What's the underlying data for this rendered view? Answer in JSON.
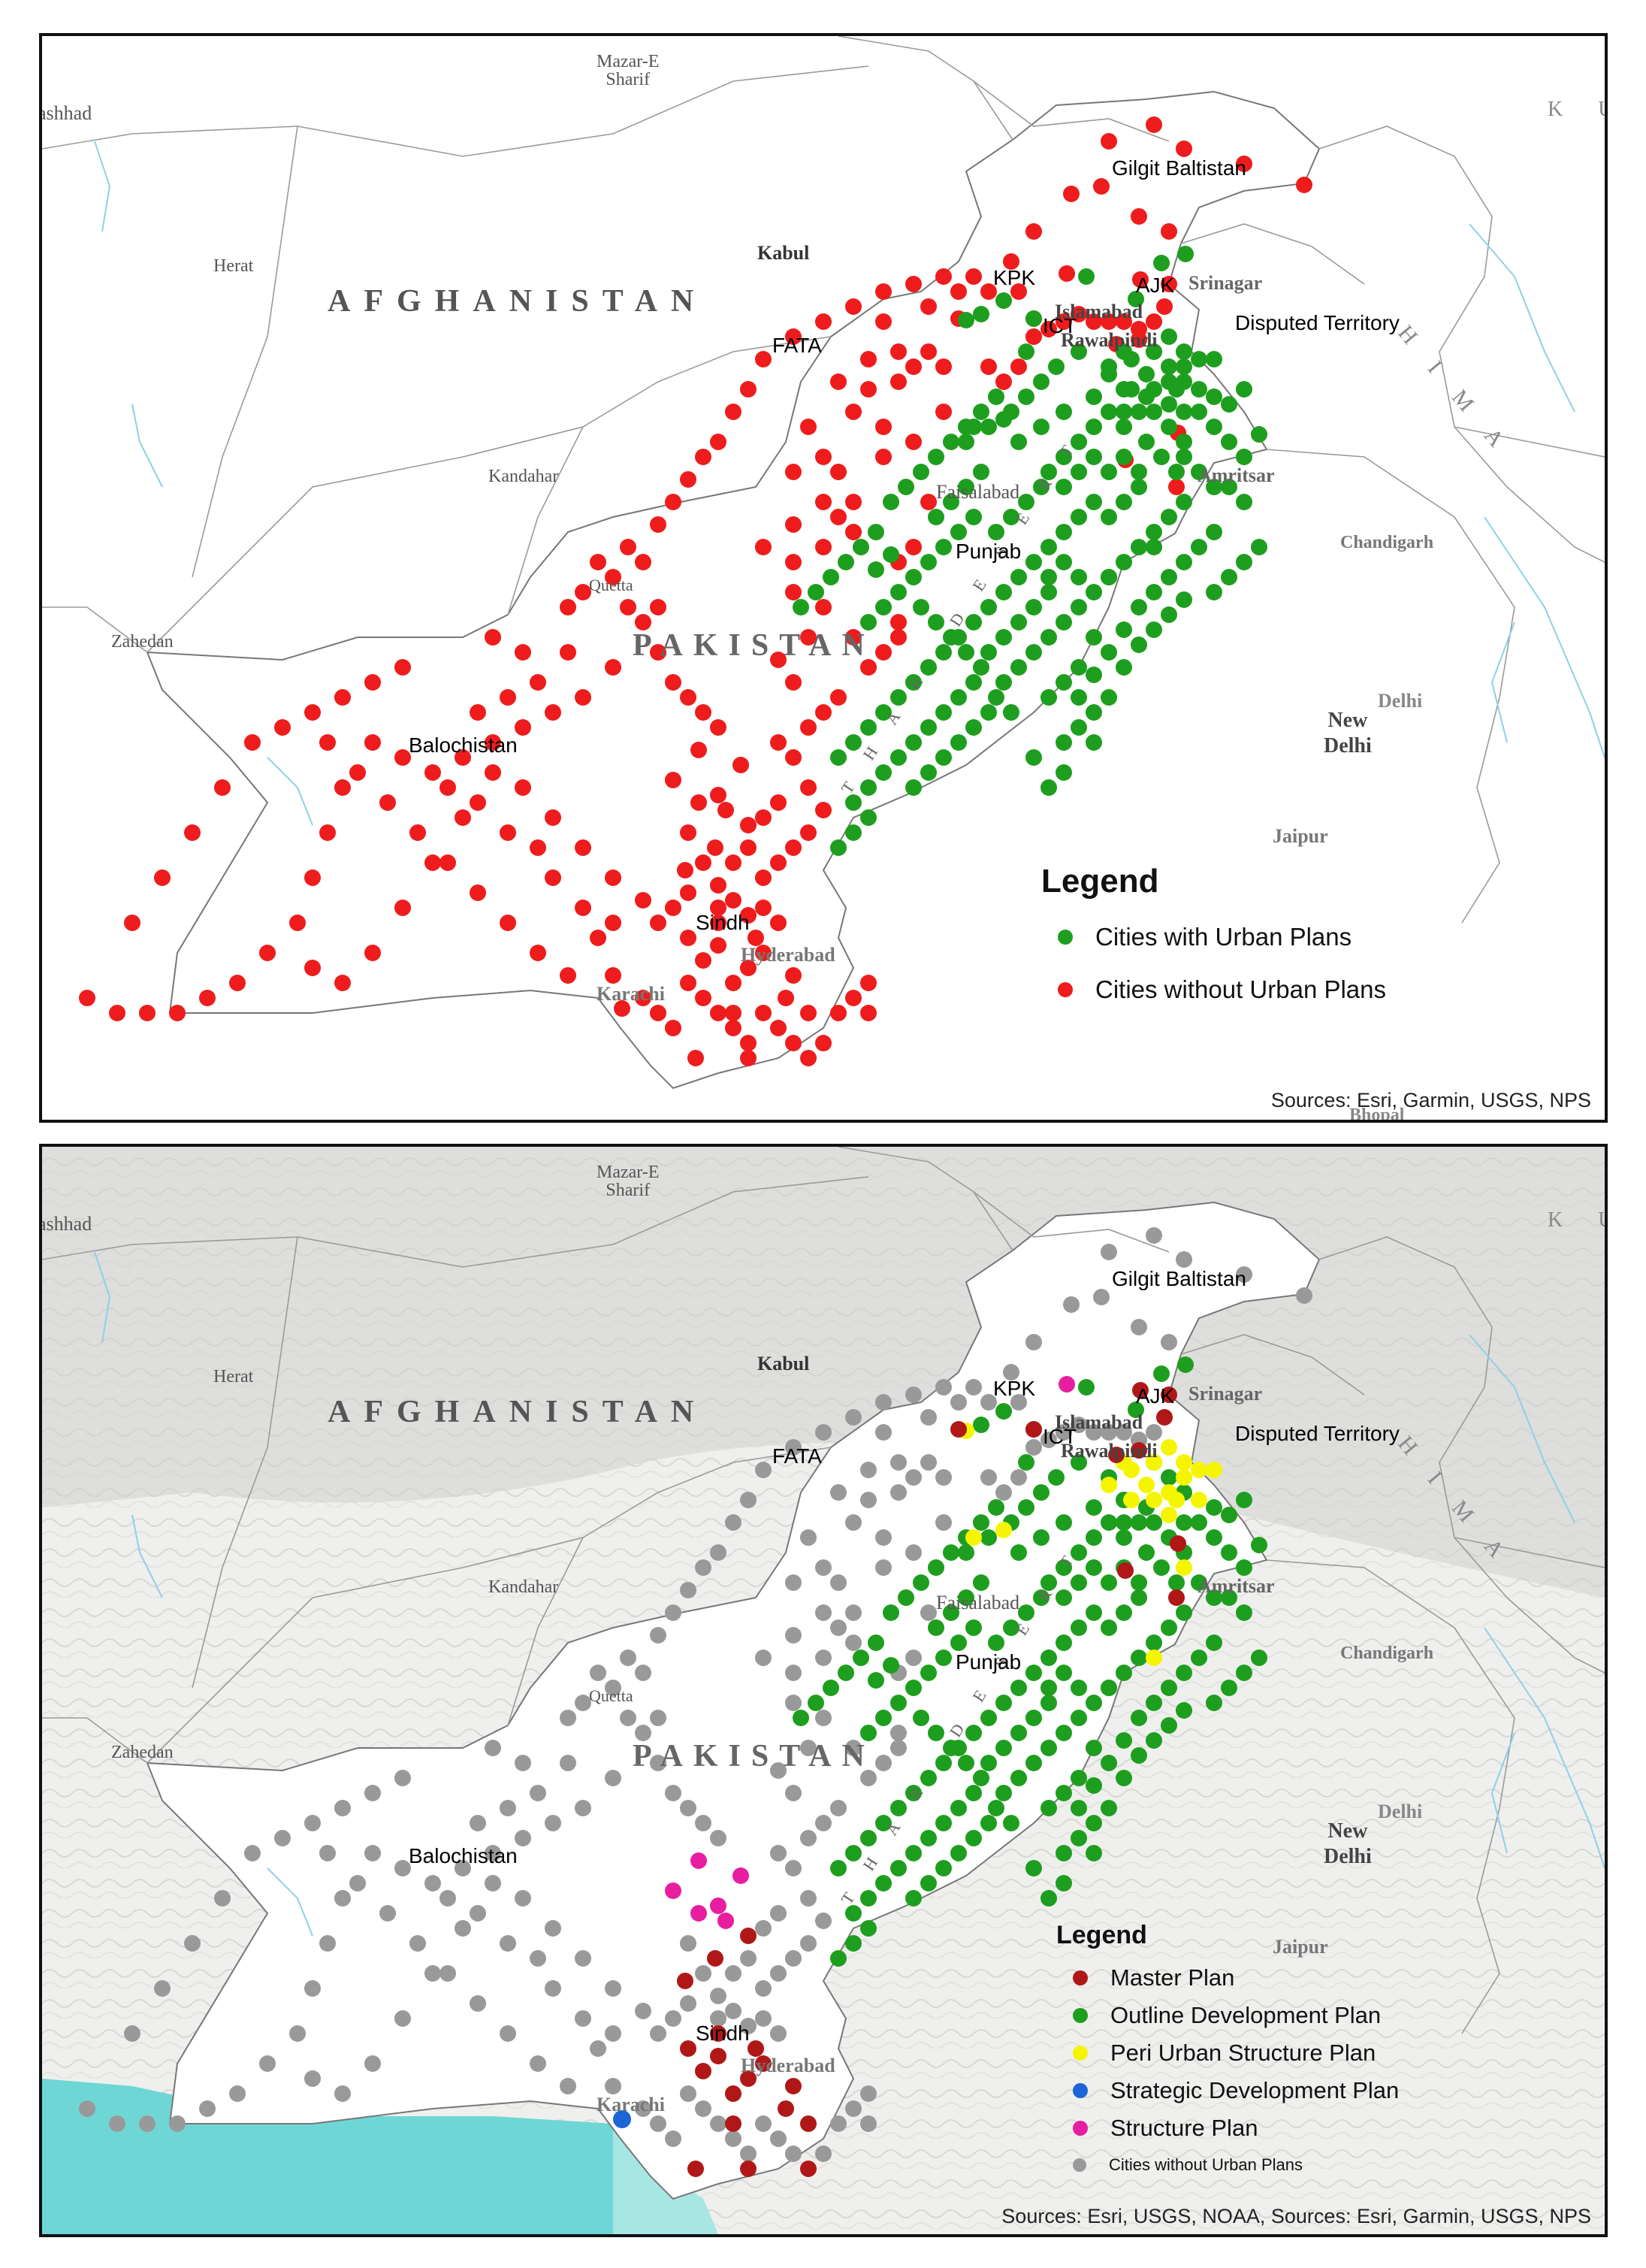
{
  "map1": {
    "labels": {
      "mazar": "Mazar-E\nSharif",
      "mashhad": "ashhad",
      "herat": "Herat",
      "kabul": "Kabul",
      "afghanistan": "AFGHANISTAN",
      "kandahar": "Kandahar",
      "quetta": "Quetta",
      "zahedan": "Zahedan",
      "pakistan": "PAKISTAN",
      "faisalabad": "Faisalabad",
      "islamabad": "Islamabad",
      "rawalpindi": "Rawalpindi",
      "srinagar": "Srinagar",
      "amritsar": "Amritsar",
      "chandigarh": "Chandigarh",
      "new_delhi": "New\nDelhi",
      "delhi": "Delhi",
      "jaipur": "Jaipur",
      "karachi": "Karachi",
      "hyderabad": "Hyderabad",
      "thar_desert": "THAR DESERT",
      "himalaya": "HIMA",
      "ku": "K U",
      "bhopal": "Bhopal"
    },
    "provinces": {
      "gilgit": "Gilgit Baltistan",
      "kpk": "KPK",
      "ajk": "AJK",
      "ict": "ICT",
      "fata": "FATA",
      "disputed": "Disputed Territory",
      "punjab": "Punjab",
      "balochistan": "Balochistan",
      "sindh": "Sindh"
    },
    "legend": {
      "title": "Legend",
      "items": [
        {
          "label": "Cities with Urban Plans",
          "color": "#1e9e1e"
        },
        {
          "label": "Cities without Urban Plans",
          "color": "#ee1c1c"
        }
      ]
    },
    "sources": "Sources: Esri, Garmin, USGS, NPS"
  },
  "map2": {
    "legend": {
      "title": "Legend",
      "items": [
        {
          "label": "Master Plan",
          "color": "#b01818"
        },
        {
          "label": "Outline Development Plan",
          "color": "#1e9e1e"
        },
        {
          "label": "Peri Urban Structure Plan",
          "color": "#f5f500"
        },
        {
          "label": "Strategic Development Plan",
          "color": "#1c64d8"
        },
        {
          "label": "Structure Plan",
          "color": "#e81ea0"
        },
        {
          "label": "Cities without Urban Plans",
          "color": "#999999"
        }
      ]
    },
    "sources": "Sources: Esri, USGS, NOAA, Sources: Esri, Garmin, USGS, NPS"
  },
  "colors": {
    "green": "#1e9e1e",
    "red": "#ee1c1c",
    "gray": "#999999",
    "darkred": "#b01818",
    "yellow": "#f5f500",
    "blue": "#1c64d8",
    "magenta": "#e81ea0",
    "sea": "#7fd8d8"
  }
}
